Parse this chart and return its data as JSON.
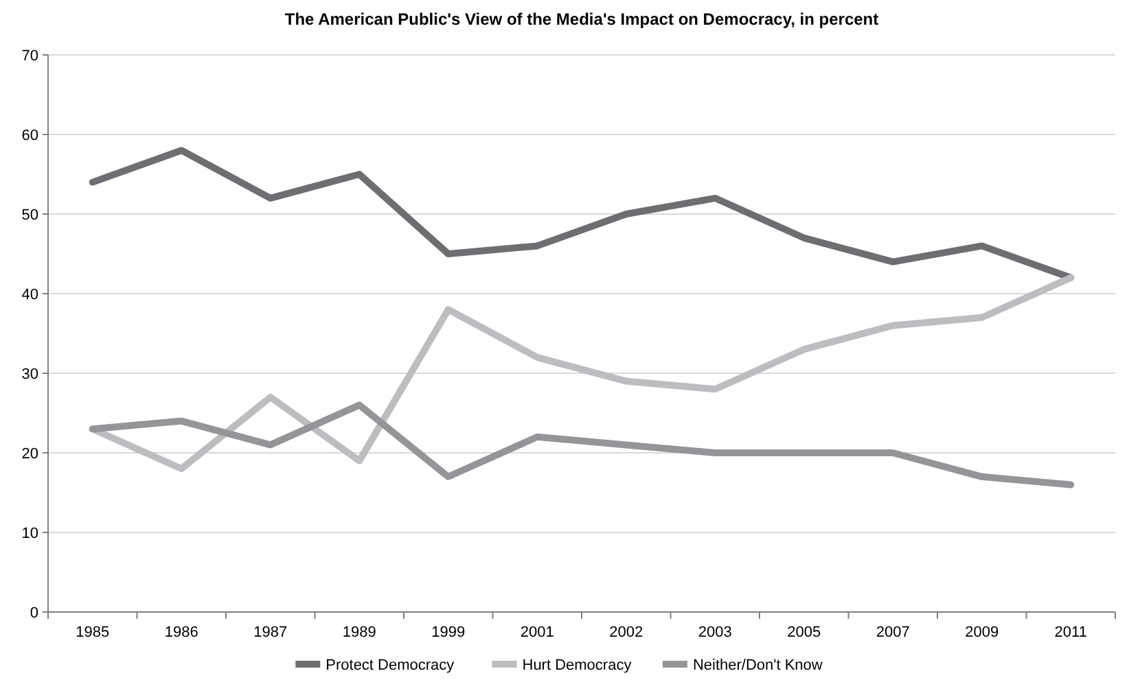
{
  "chart_data": {
    "type": "line",
    "title": "The American Public's View of the Media's Impact on Democracy, in percent",
    "categories": [
      "1985",
      "1986",
      "1987",
      "1989",
      "1999",
      "2001",
      "2002",
      "2003",
      "2005",
      "2007",
      "2009",
      "2011"
    ],
    "series": [
      {
        "name": "Protect Democracy",
        "color": "#6d6e71",
        "values": [
          54,
          58,
          52,
          55,
          45,
          46,
          50,
          52,
          47,
          44,
          46,
          42
        ]
      },
      {
        "name": "Hurt Democracy",
        "color": "#bcbdc0",
        "values": [
          23,
          18,
          27,
          19,
          38,
          32,
          29,
          28,
          33,
          36,
          37,
          42
        ]
      },
      {
        "name": "Neither/Don't Know",
        "color": "#939598",
        "values": [
          23,
          24,
          21,
          26,
          17,
          22,
          21,
          20,
          20,
          20,
          17,
          16
        ]
      }
    ],
    "ylim": [
      0,
      70
    ],
    "yticks": [
      0,
      10,
      20,
      30,
      40,
      50,
      60,
      70
    ],
    "grid": "y",
    "legend": "bottom",
    "marker": "none",
    "line_style": "solid"
  }
}
